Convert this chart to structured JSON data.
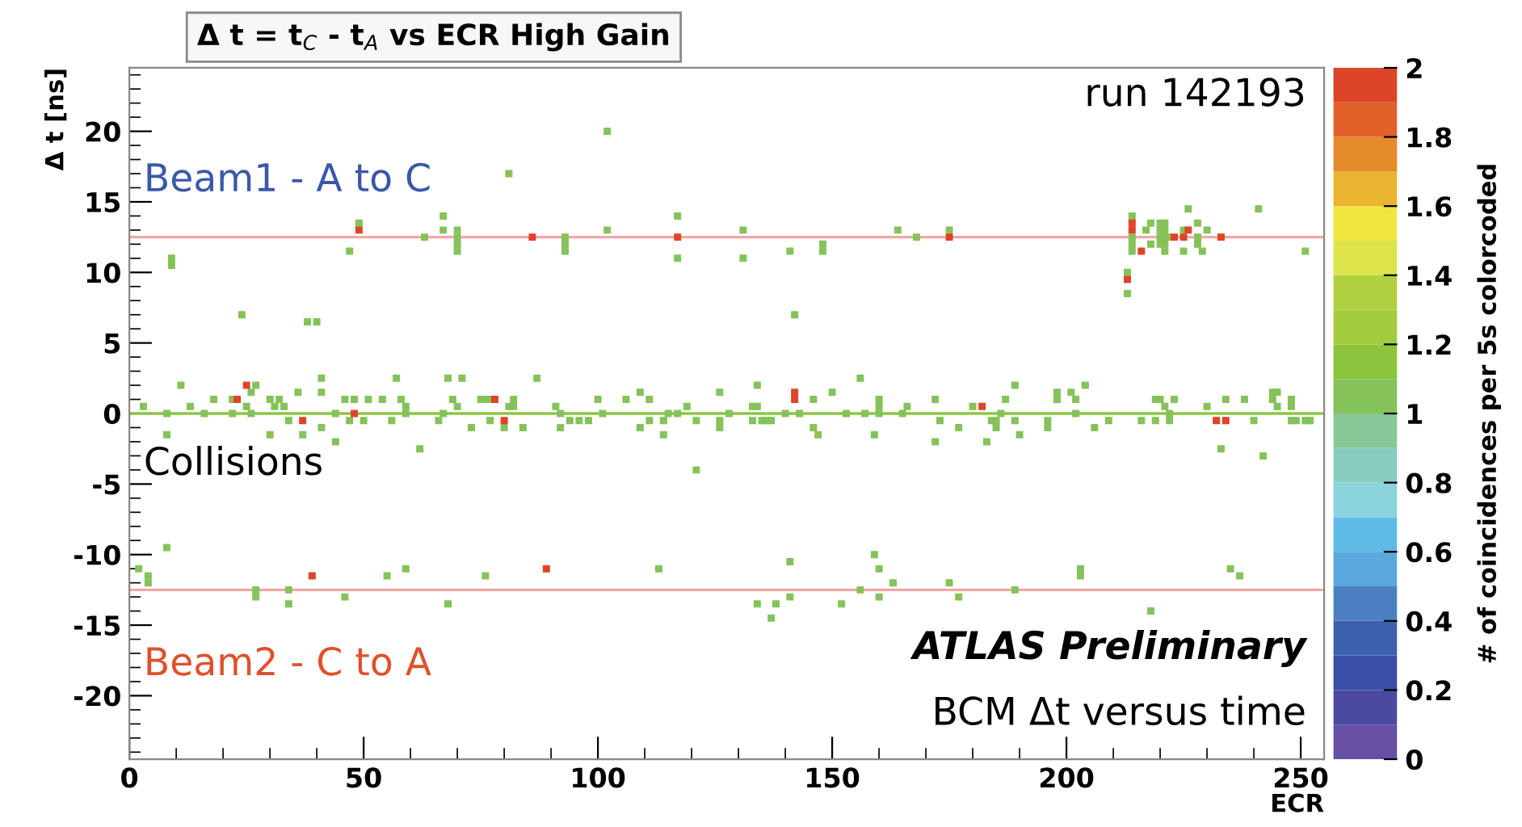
{
  "chart_data": {
    "type": "scatter",
    "title": "Δ t = t$_{C}$ - t$_{A}$ vs ECR High Gain",
    "xlabel": "ECR",
    "ylabel": "Δ t [ns]",
    "clabel": "# of coincidences per 5s colorcoded",
    "xlim": [
      0,
      255
    ],
    "ylim": [
      -24.5,
      24.5
    ],
    "xticks": [
      0,
      50,
      100,
      150,
      200,
      250
    ],
    "yticks": [
      -20,
      -15,
      -10,
      -5,
      0,
      5,
      10,
      15,
      20
    ],
    "clim": [
      0,
      2
    ],
    "cticks": [
      0,
      0.2,
      0.4,
      0.6,
      0.8,
      1,
      1.2,
      1.4,
      1.6,
      1.8,
      2
    ],
    "marker": "square",
    "ref_lines": [
      {
        "axis": "y",
        "value": 12.5,
        "label": "Beam1 - A to C",
        "color": "#f4a6a6"
      },
      {
        "axis": "y",
        "value": 0,
        "label": "Collisions",
        "color": "#8cc63f"
      },
      {
        "axis": "y",
        "value": -12.5,
        "label": "Beam2 - C to A",
        "color": "#f4a6a6"
      }
    ],
    "annotations": [
      "run 142193",
      "ATLAS Preliminary",
      "BCM Δt versus time"
    ],
    "series": [
      {
        "color": "#85c25a",
        "x": [
          9,
          9,
          24,
          38,
          40,
          49,
          47,
          63,
          67,
          67,
          70,
          70,
          70,
          70,
          81,
          93,
          93,
          93,
          102,
          102,
          117,
          117,
          131,
          131,
          141,
          148,
          148,
          142,
          164,
          168,
          175,
          213,
          213,
          214,
          214,
          214,
          214,
          217,
          218,
          218,
          220,
          220,
          220,
          220,
          221,
          221,
          221,
          221,
          221,
          222,
          225,
          225,
          226,
          228,
          228,
          228,
          229,
          230,
          241,
          251
        ],
        "values": [
          10.5,
          11,
          7,
          6.5,
          6.5,
          13.5,
          11.5,
          12.5,
          14,
          13,
          13,
          12.5,
          12,
          11.5,
          17,
          12.5,
          12,
          11.5,
          20,
          13,
          14,
          11,
          13,
          11,
          11.5,
          12,
          11.5,
          7,
          13,
          12.5,
          13,
          10,
          8.5,
          14,
          12.5,
          12,
          11.5,
          13,
          13.5,
          12,
          13.5,
          13,
          12.5,
          12,
          13.5,
          13,
          12.5,
          12,
          11.5,
          12.5,
          13,
          11.5,
          14.5,
          13.5,
          12.5,
          12,
          11.5,
          13,
          14.5,
          11.5
        ],
        "cvalues": [
          1,
          1,
          1,
          1,
          1,
          1,
          1,
          1,
          1,
          1,
          1,
          1,
          1,
          1,
          1,
          1,
          1,
          1,
          1,
          1,
          1,
          1,
          1,
          1,
          1,
          1,
          1,
          1,
          1,
          1,
          1,
          1,
          1,
          1,
          1,
          1,
          1,
          1,
          1,
          1,
          1,
          1,
          1,
          1,
          1,
          1,
          1,
          1,
          1,
          1,
          1,
          1,
          1,
          1,
          1,
          1,
          1,
          1,
          1,
          1
        ]
      },
      {
        "color": "#85c25a",
        "x": [
          2,
          4,
          4,
          8,
          27,
          27,
          34,
          34,
          46,
          55,
          59,
          68,
          76,
          113,
          134,
          138,
          137,
          141,
          141,
          152,
          156,
          159,
          160,
          160,
          163,
          175,
          177,
          189,
          203,
          203,
          218,
          235,
          237
        ],
        "values": [
          -11,
          -11.5,
          -12,
          -9.5,
          -12.5,
          -13,
          -12.5,
          -13.5,
          -13,
          -11.5,
          -11,
          -13.5,
          -11.5,
          -11,
          -13.5,
          -13.5,
          -14.5,
          -10.5,
          -13,
          -13.5,
          -12.5,
          -10,
          -11,
          -13,
          -12,
          -12,
          -13,
          -12.5,
          -11,
          -11.5,
          -14,
          -11,
          -11.5
        ],
        "cvalues": [
          1,
          1,
          1,
          1,
          1,
          1,
          1,
          1,
          1,
          1,
          1,
          1,
          1,
          1,
          1,
          1,
          1,
          1,
          1,
          1,
          1,
          1,
          1,
          1,
          1,
          1,
          1,
          1,
          1,
          1,
          1,
          1,
          1
        ]
      },
      {
        "color": "#85c25a",
        "x": [
          3,
          8,
          8,
          11,
          13,
          16,
          18,
          22,
          22,
          25,
          26,
          26,
          27,
          30,
          30,
          32,
          31,
          33,
          34,
          36,
          37,
          41,
          41,
          41,
          44,
          44,
          46,
          47,
          48,
          50,
          51,
          54,
          56,
          57,
          58,
          59,
          59,
          62,
          66,
          67,
          68,
          69,
          70,
          71,
          73,
          75,
          76,
          77,
          77,
          80,
          81,
          82,
          82,
          84,
          87,
          91,
          92,
          92,
          94,
          96,
          98,
          100,
          101,
          106,
          109,
          109,
          111,
          111,
          114,
          114,
          115,
          117,
          119,
          121,
          121,
          126,
          126,
          126,
          128,
          133,
          133,
          134,
          134,
          135,
          136,
          137,
          140,
          143,
          146,
          146,
          147,
          150,
          153,
          156,
          157,
          159,
          160,
          160,
          160,
          165,
          166,
          172,
          172,
          173,
          177,
          180,
          183,
          184,
          185,
          185,
          186,
          187,
          189,
          189,
          190,
          196,
          196,
          198,
          198,
          201,
          202,
          202,
          204,
          206,
          209,
          216,
          219,
          220,
          221,
          222,
          219,
          223,
          222,
          230,
          233,
          234,
          238,
          240,
          242,
          244,
          245,
          244,
          245,
          248,
          248,
          248,
          249,
          251,
          252
        ],
        "values": [
          0.5,
          0,
          -1.5,
          2,
          0.5,
          0,
          1,
          0,
          1,
          0.5,
          0,
          1.5,
          2,
          -1.5,
          1,
          1,
          0.5,
          0.5,
          -0.5,
          1.5,
          -1.5,
          2.5,
          1.5,
          -1,
          0,
          -2,
          1,
          -0.5,
          1,
          -0.5,
          1,
          1,
          -0.5,
          2.5,
          1,
          0.5,
          0,
          -2.5,
          -0.5,
          0,
          2.5,
          1,
          0.5,
          2.5,
          -1,
          1,
          1,
          1,
          -0.5,
          -1,
          0.5,
          0.5,
          1,
          -1,
          2.5,
          0.5,
          -1,
          0,
          -0.5,
          -0.5,
          -0.5,
          1,
          0,
          1,
          1.5,
          -1,
          1,
          -0.5,
          -0.5,
          -1.5,
          0,
          0,
          0.5,
          -0.5,
          -4,
          1.5,
          -0.5,
          -1,
          0,
          0.5,
          -0.5,
          2,
          0.5,
          -0.5,
          -0.5,
          -0.5,
          0,
          0,
          1,
          -1,
          -1.5,
          1.5,
          0,
          2.5,
          0,
          -1.5,
          1,
          0.5,
          0,
          0,
          0.5,
          1,
          -2,
          -0.5,
          -1,
          0.5,
          -2,
          -0.5,
          -0.5,
          -1,
          0,
          1,
          2,
          -0.5,
          -1.5,
          -0.5,
          -1,
          1.5,
          1,
          1.5,
          1,
          0,
          2,
          -1,
          -0.5,
          -0.5,
          1,
          1,
          0.5,
          0,
          -0.5,
          1,
          -0.5,
          0.5,
          -2.5,
          1,
          1,
          -0.5,
          -3,
          1.5,
          1.5,
          1,
          0.5,
          1,
          0.5,
          -0.5,
          -0.5,
          -0.5,
          -0.5
        ],
        "cvalues": [
          1,
          1,
          1,
          1,
          1,
          1,
          1,
          1,
          1,
          1,
          1,
          1,
          1,
          1,
          1,
          1,
          1,
          1,
          1,
          1,
          1,
          1,
          1,
          1,
          1,
          1,
          1,
          1,
          1,
          1,
          1,
          1,
          1,
          1,
          1,
          1,
          1,
          1,
          1,
          1,
          1,
          1,
          1,
          1,
          1,
          1,
          1,
          1,
          1,
          1,
          1,
          1,
          1,
          1,
          1,
          1,
          1,
          1,
          1,
          1,
          1,
          1,
          1,
          1,
          1,
          1,
          1,
          1,
          1,
          1,
          1,
          1,
          1,
          1,
          1,
          1,
          1,
          1,
          1,
          1,
          1,
          1,
          1,
          1,
          1,
          1,
          1,
          1,
          1,
          1,
          1,
          1,
          1,
          1,
          1,
          1,
          1,
          1,
          1,
          1,
          1,
          1,
          1,
          1,
          1,
          1,
          1,
          1,
          1,
          1,
          1,
          1,
          1,
          1,
          1,
          1,
          1,
          1,
          1,
          1,
          1,
          1,
          1,
          1,
          1,
          1,
          1,
          1,
          1,
          1,
          1,
          1,
          1,
          1,
          1,
          1,
          1,
          1,
          1,
          1,
          1,
          1,
          1,
          1,
          1,
          1,
          1,
          1,
          1
        ]
      },
      {
        "color": "#de4428",
        "x": [
          49,
          86,
          117,
          175,
          213,
          214,
          214,
          216,
          223,
          225,
          226,
          233,
          39,
          89,
          23,
          25,
          37,
          48,
          78,
          80,
          142,
          142,
          182,
          232,
          234
        ],
        "values": [
          13,
          12.5,
          12.5,
          12.5,
          9.5,
          13.5,
          13,
          11.5,
          12.5,
          12.5,
          13,
          12.5,
          -11.5,
          -11,
          1,
          2,
          -0.5,
          0,
          1,
          -0.5,
          1,
          1.5,
          0.5,
          -0.5,
          -0.5
        ],
        "cvalues": [
          2,
          2,
          2,
          2,
          2,
          2,
          2,
          2,
          2,
          2,
          2,
          2,
          2,
          2,
          2,
          2,
          2,
          2,
          2,
          2,
          2,
          2,
          2,
          2,
          2
        ]
      }
    ]
  }
}
